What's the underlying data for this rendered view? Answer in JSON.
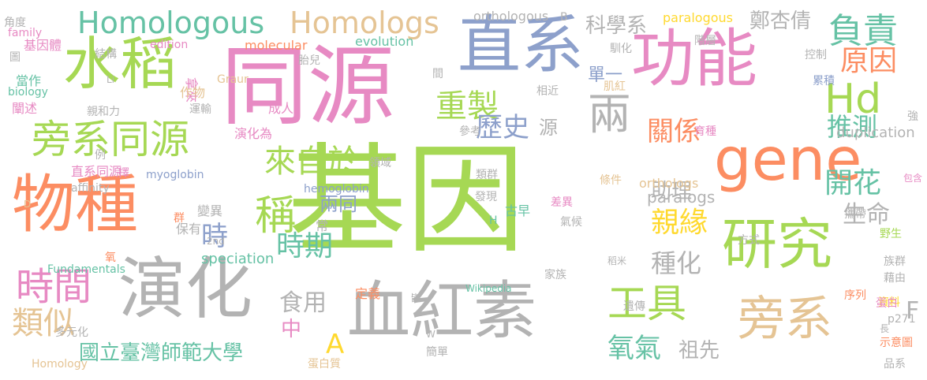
{
  "word_cloud": {
    "words": [
      {
        "text": "基因",
        "color": "#a6d854"
      },
      {
        "text": "同源",
        "color": "#e78ac3"
      },
      {
        "text": "直系",
        "color": "#8da0cb"
      },
      {
        "text": "功能",
        "color": "#e78ac3"
      },
      {
        "text": "水稻",
        "color": "#a6d854"
      },
      {
        "text": "gene",
        "color": "#fc8d62"
      },
      {
        "text": "物種",
        "color": "#fc8d62"
      },
      {
        "text": "演化",
        "color": "#b3b3b3"
      },
      {
        "text": "血紅素",
        "color": "#b3b3b3"
      },
      {
        "text": "研究",
        "color": "#a6d854"
      },
      {
        "text": "旁系",
        "color": "#e5c494"
      },
      {
        "text": "旁系同源",
        "color": "#a6d854"
      },
      {
        "text": "兩",
        "color": "#b3b3b3"
      },
      {
        "text": "稱",
        "color": "#a6d854"
      },
      {
        "text": "Homologous",
        "color": "#66c2a5"
      },
      {
        "text": "Homologs",
        "color": "#e5c494"
      },
      {
        "text": "Hd",
        "color": "#a6d854"
      },
      {
        "text": "時間",
        "color": "#e78ac3"
      },
      {
        "text": "工具",
        "color": "#a6d854"
      },
      {
        "text": "負責",
        "color": "#66c2a5"
      },
      {
        "text": "原因",
        "color": "#fc8d62"
      },
      {
        "text": "類似",
        "color": "#e5c494"
      },
      {
        "text": "來自於",
        "color": "#a6d854"
      },
      {
        "text": "重製",
        "color": "#a6d854"
      },
      {
        "text": "歷史",
        "color": "#8da0cb"
      },
      {
        "text": "推測",
        "color": "#66c2a5"
      },
      {
        "text": "關係",
        "color": "#fc8d62"
      },
      {
        "text": "時期",
        "color": "#66c2a5"
      },
      {
        "text": "開花",
        "color": "#66c2a5"
      },
      {
        "text": "親緣",
        "color": "#ffd92f"
      },
      {
        "text": "生命",
        "color": "#b3b3b3"
      },
      {
        "text": "種化",
        "color": "#b3b3b3"
      },
      {
        "text": "氧氣",
        "color": "#66c2a5"
      },
      {
        "text": "食用",
        "color": "#b3b3b3"
      },
      {
        "text": "時",
        "color": "#8da0cb"
      },
      {
        "text": "鄭杏倩",
        "color": "#b3b3b3"
      },
      {
        "text": "科學系",
        "color": "#b3b3b3"
      },
      {
        "text": "國立臺灣師範大學",
        "color": "#66c2a5"
      },
      {
        "text": "祖先",
        "color": "#b3b3b3"
      },
      {
        "text": "助理",
        "color": "#b3b3b3"
      },
      {
        "text": "兩同",
        "color": "#8da0cb"
      },
      {
        "text": "中",
        "color": "#e78ac3"
      },
      {
        "text": "A",
        "color": "#ffd92f"
      },
      {
        "text": "F",
        "color": "#b3b3b3"
      },
      {
        "text": "源",
        "color": "#b3b3b3"
      },
      {
        "text": "單一",
        "color": "#8da0cb"
      },
      {
        "text": "paralogs",
        "color": "#b3b3b3"
      },
      {
        "text": "speciation",
        "color": "#66c2a5"
      },
      {
        "text": "duplication",
        "color": "#b3b3b3"
      },
      {
        "text": "orthologous",
        "color": "#b3b3b3"
      },
      {
        "text": "paralogous",
        "color": "#ffd92f"
      },
      {
        "text": "orthologs",
        "color": "#e5c494"
      },
      {
        "text": "evolution",
        "color": "#66c2a5"
      },
      {
        "text": "molecular",
        "color": "#fc8d62"
      },
      {
        "text": "edition",
        "color": "#e78ac3"
      },
      {
        "text": "family",
        "color": "#e78ac3"
      },
      {
        "text": "角度",
        "color": "#b3b3b3"
      },
      {
        "text": "B",
        "color": "#b3b3b3"
      },
      {
        "text": "基因體",
        "color": "#e78ac3"
      },
      {
        "text": "圖",
        "color": "#b3b3b3"
      },
      {
        "text": "結構",
        "color": "#b3b3b3"
      },
      {
        "text": "當作",
        "color": "#66c2a5"
      },
      {
        "text": "biology",
        "color": "#66c2a5"
      },
      {
        "text": "Li",
        "color": "#b3b3b3"
      },
      {
        "text": "闡述",
        "color": "#e78ac3"
      },
      {
        "text": "親和力",
        "color": "#b3b3b3"
      },
      {
        "text": "Graur",
        "color": "#e5c494"
      },
      {
        "text": "運輸",
        "color": "#b3b3b3"
      },
      {
        "text": "拿來",
        "color": "#e78ac3"
      },
      {
        "text": "作物",
        "color": "#e5c494"
      },
      {
        "text": "成人",
        "color": "#e78ac3"
      },
      {
        "text": "胎兒",
        "color": "#b3b3b3"
      },
      {
        "text": "間",
        "color": "#b3b3b3"
      },
      {
        "text": "馴化",
        "color": "#b3b3b3"
      },
      {
        "text": "階層",
        "color": "#b3b3b3"
      },
      {
        "text": "控制",
        "color": "#b3b3b3"
      },
      {
        "text": "累積",
        "color": "#8da0cb"
      },
      {
        "text": "相近",
        "color": "#b3b3b3"
      },
      {
        "text": "肌紅",
        "color": "#e5c494"
      },
      {
        "text": "參考",
        "color": "#b3b3b3"
      },
      {
        "text": "演化為",
        "color": "#e78ac3"
      },
      {
        "text": "育種",
        "color": "#e78ac3"
      },
      {
        "text": "強",
        "color": "#b3b3b3"
      },
      {
        "text": "領域",
        "color": "#b3b3b3"
      },
      {
        "text": "直系同源",
        "color": "#e78ac3"
      },
      {
        "text": "myoglobin",
        "color": "#8da0cb"
      },
      {
        "text": "例",
        "color": "#b3b3b3"
      },
      {
        "text": "擇",
        "color": "#e78ac3"
      },
      {
        "text": "affinity",
        "color": "#b3b3b3"
      },
      {
        "text": "D",
        "color": "#e5c494"
      },
      {
        "text": "hemoglobin",
        "color": "#8da0cb"
      },
      {
        "text": "類群",
        "color": "#b3b3b3"
      },
      {
        "text": "差異",
        "color": "#e78ac3"
      },
      {
        "text": "條件",
        "color": "#e5c494"
      },
      {
        "text": "包含",
        "color": "#e78ac3"
      },
      {
        "text": "變異",
        "color": "#b3b3b3"
      },
      {
        "text": "發現",
        "color": "#b3b3b3"
      },
      {
        "text": "保有",
        "color": "#b3b3b3"
      },
      {
        "text": "群",
        "color": "#fc8d62"
      },
      {
        "text": "古早",
        "color": "#66c2a5"
      },
      {
        "text": "氣候",
        "color": "#b3b3b3"
      },
      {
        "text": "方式",
        "color": "#b3b3b3"
      },
      {
        "text": "攜帶",
        "color": "#b3b3b3"
      },
      {
        "text": "常",
        "color": "#b3b3b3"
      },
      {
        "text": "H",
        "color": "#66c2a5"
      },
      {
        "text": "2nd",
        "color": "#b3b3b3"
      },
      {
        "text": "氧",
        "color": "#fc8d62"
      },
      {
        "text": "稻米",
        "color": "#b3b3b3"
      },
      {
        "text": "野生",
        "color": "#a6d854"
      },
      {
        "text": "族群",
        "color": "#b3b3b3"
      },
      {
        "text": "Fundamentals",
        "color": "#66c2a5"
      },
      {
        "text": "家族",
        "color": "#b3b3b3"
      },
      {
        "text": "藉由",
        "color": "#b3b3b3"
      },
      {
        "text": "皆",
        "color": "#b3b3b3"
      },
      {
        "text": "定義",
        "color": "#fc8d62"
      },
      {
        "text": "Wikipedia",
        "color": "#66c2a5"
      },
      {
        "text": "序列",
        "color": "#fc8d62"
      },
      {
        "text": "遺傳",
        "color": "#b3b3b3"
      },
      {
        "text": "資料",
        "color": "#ffd92f"
      },
      {
        "text": "蛋白",
        "color": "#e78ac3"
      },
      {
        "text": "多元化",
        "color": "#b3b3b3"
      },
      {
        "text": "p271",
        "color": "#b3b3b3"
      },
      {
        "text": "長",
        "color": "#b3b3b3"
      },
      {
        "text": "W",
        "color": "#b3b3b3"
      },
      {
        "text": "簡單",
        "color": "#b3b3b3"
      },
      {
        "text": "示意圖",
        "color": "#fc8d62"
      },
      {
        "text": "Homology",
        "color": "#e5c494"
      },
      {
        "text": "蛋白質",
        "color": "#e5c494"
      },
      {
        "text": "品系",
        "color": "#b3b3b3"
      }
    ]
  }
}
